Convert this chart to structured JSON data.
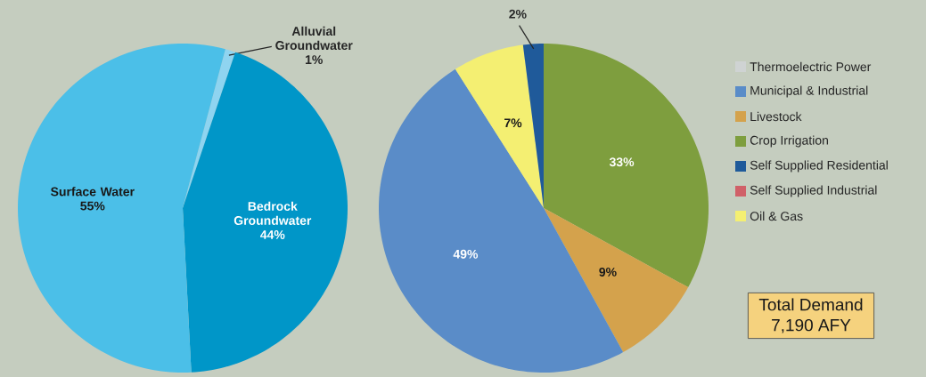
{
  "chart_data": [
    {
      "type": "pie",
      "categories": [
        "Alluvial Groundwater",
        "Bedrock Groundwater",
        "Surface Water"
      ],
      "values": [
        1,
        44,
        55
      ],
      "colors": [
        "#8fd4f0",
        "#0096c8",
        "#4bbfe8"
      ],
      "value_labels": [
        "1%",
        "44%",
        "55%"
      ],
      "legend": false
    },
    {
      "type": "pie",
      "categories": [
        "Thermoelectric Power",
        "Municipal & Industrial",
        "Livestock",
        "Crop Irrigation",
        "Self Supplied Residential",
        "Self Supplied Industrial",
        "Oil & Gas"
      ],
      "values": [
        0,
        49,
        9,
        33,
        2,
        0,
        7
      ],
      "colors": [
        "#cfd3d3",
        "#5a8cc8",
        "#d4a24c",
        "#7e9e3e",
        "#1f5a9a",
        "#d06068",
        "#f4ef72"
      ],
      "value_labels": [
        null,
        "49%",
        "9%",
        "33%",
        "2%",
        null,
        "7%"
      ],
      "legend": "right",
      "annotations": [
        "Total Demand",
        "7,190 AFY"
      ]
    }
  ]
}
